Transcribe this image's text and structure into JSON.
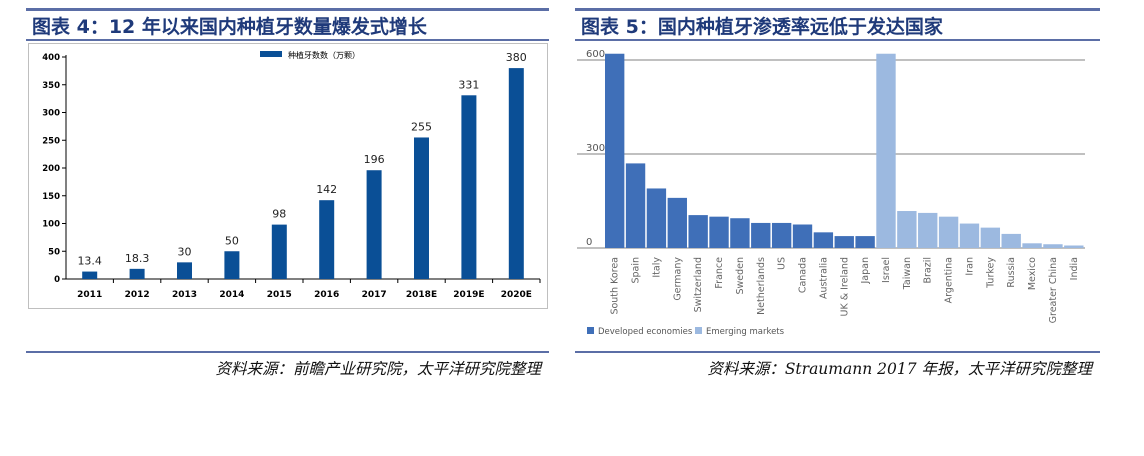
{
  "left_panel": {
    "title": "图表 4：12 年以来国内种植牙数量爆发式增长",
    "source": "资料来源：前瞻产业研究院，太平洋研究院整理"
  },
  "right_panel": {
    "title": "图表 5：国内种植牙渗透率远低于发达国家",
    "source": "资料来源：Straumann 2017 年报，太平洋研究院整理"
  },
  "colors": {
    "title_text": "#1f3a7a",
    "rule": "#5b6ea6",
    "left_bar": "#0a4f96",
    "developed": "#3f6fb8",
    "emerging": "#9cb9e0"
  },
  "chart_data": [
    {
      "type": "bar",
      "title": "",
      "legend": [
        "种植牙数数（万颗）"
      ],
      "legend_position": "top",
      "categories": [
        "2011",
        "2012",
        "2013",
        "2014",
        "2015",
        "2016",
        "2017",
        "2018E",
        "2019E",
        "2020E"
      ],
      "series": [
        {
          "name": "种植牙数数（万颗）",
          "values": [
            13.4,
            18.3,
            30,
            50,
            98,
            142,
            196,
            255,
            331,
            380
          ]
        }
      ],
      "data_labels": [
        "13.4",
        "18.3",
        "30",
        "50",
        "98",
        "142",
        "196",
        "255",
        "331",
        "380"
      ],
      "ylim": [
        0,
        400
      ],
      "yticks": [
        0,
        50,
        100,
        150,
        200,
        250,
        300,
        350,
        400
      ],
      "grid": false
    },
    {
      "type": "bar",
      "title": "",
      "legend_position": "bottom-left",
      "categories": [
        "South Korea",
        "Spain",
        "Italy",
        "Germany",
        "Switzerland",
        "France",
        "Sweden",
        "Netherlands",
        "US",
        "Canada",
        "Australia",
        "UK & Ireland",
        "Japan",
        "Israel",
        "Taiwan",
        "Brazil",
        "Argentina",
        "Iran",
        "Turkey",
        "Russia",
        "Mexico",
        "Greater China",
        "India"
      ],
      "series": [
        {
          "name": "Developed economies",
          "values": [
            620,
            270,
            190,
            160,
            105,
            100,
            95,
            80,
            80,
            75,
            50,
            38,
            38,
            null,
            null,
            null,
            null,
            null,
            null,
            null,
            null,
            null,
            null
          ]
        },
        {
          "name": "Emerging markets",
          "values": [
            null,
            null,
            null,
            null,
            null,
            null,
            null,
            null,
            null,
            null,
            null,
            null,
            null,
            620,
            118,
            112,
            100,
            78,
            65,
            45,
            15,
            12,
            8
          ]
        }
      ],
      "ylim": [
        0,
        600
      ],
      "yticks": [
        0,
        300,
        600
      ],
      "grid": true
    }
  ]
}
